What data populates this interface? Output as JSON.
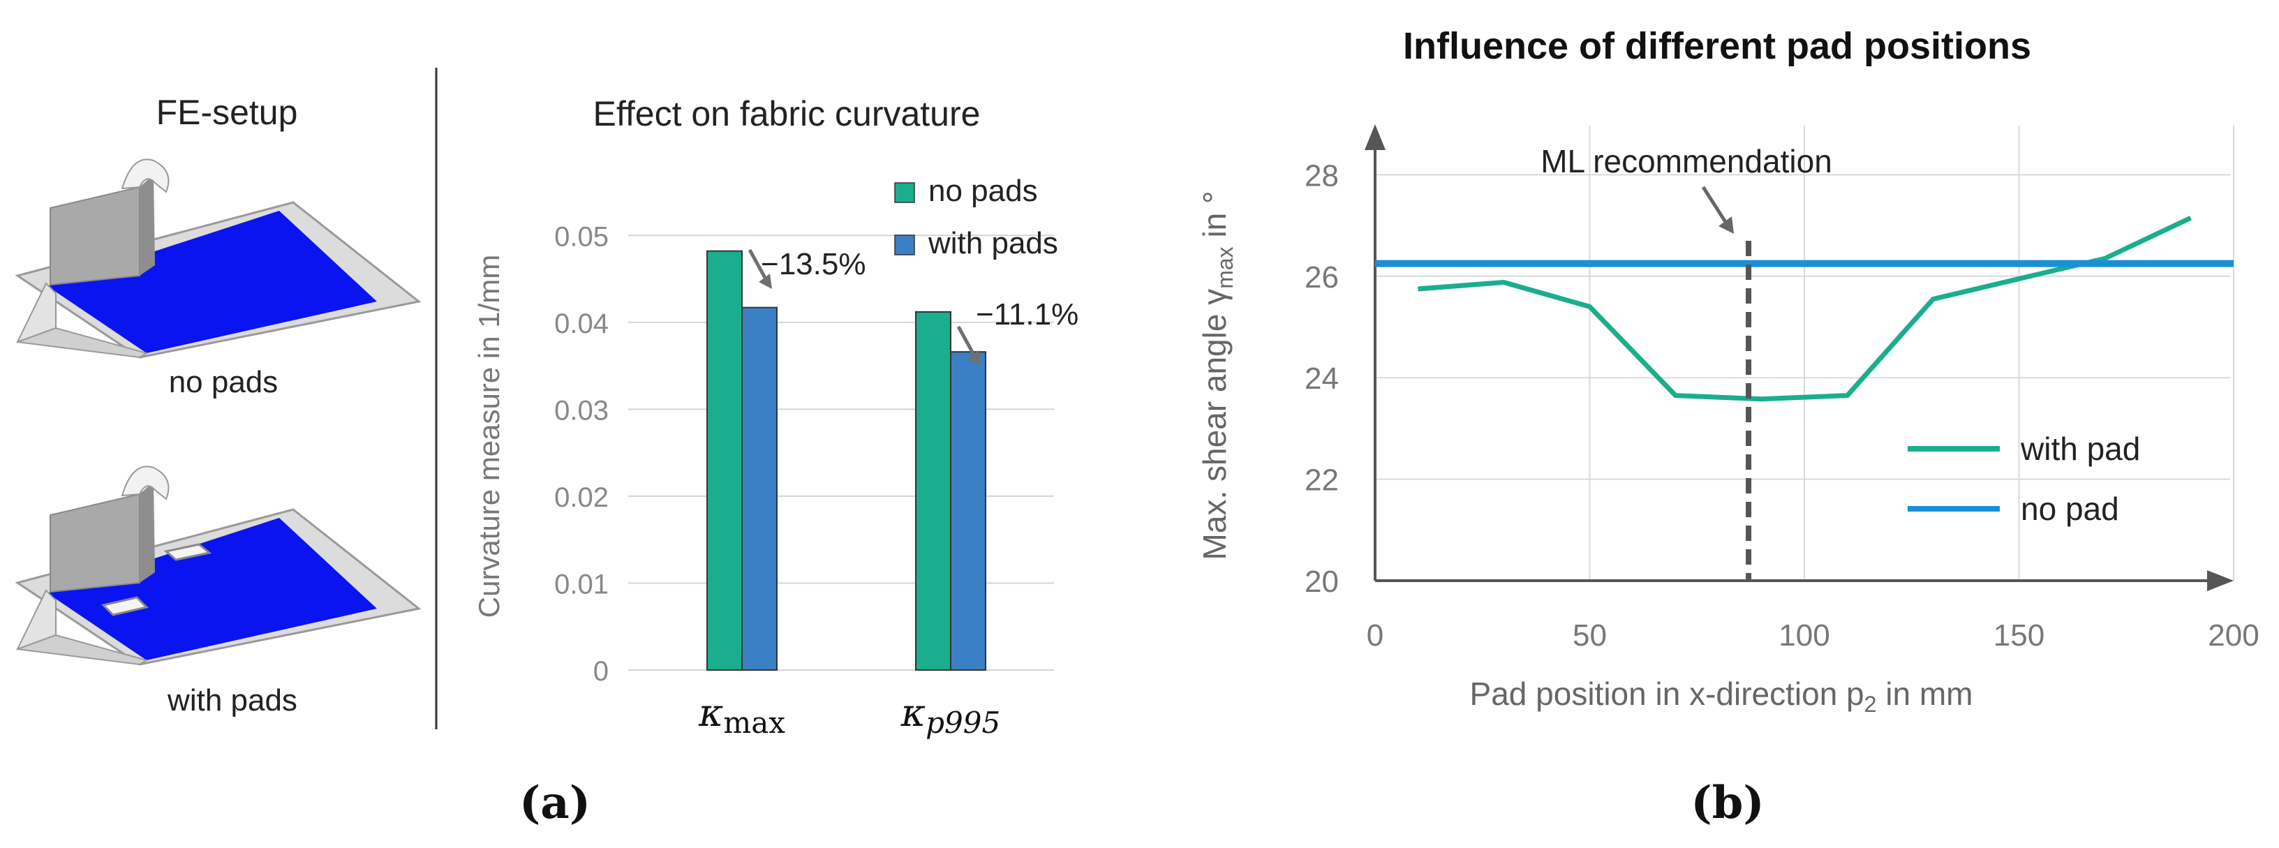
{
  "panel_a": {
    "fe_setup": {
      "title": "FE-setup",
      "label_no_pads": "no pads",
      "label_with_pads": "with pads"
    },
    "caption": "(a)"
  },
  "panel_b": {
    "caption": "(b)"
  },
  "chart_data": [
    {
      "type": "bar",
      "title": "Effect on fabric curvature",
      "ylabel": "Curvature measure in 1/mm",
      "xlabel": "",
      "categories": [
        "κmax",
        "κp995"
      ],
      "series": [
        {
          "name": "no pads",
          "values": [
            0.0482,
            0.0412
          ],
          "color": "#1aae8e"
        },
        {
          "name": "with pads",
          "values": [
            0.0417,
            0.0366
          ],
          "color": "#3b7fc4"
        }
      ],
      "ylim": [
        0,
        0.055
      ],
      "yticks": [
        "0",
        "0.01",
        "0.02",
        "0.03",
        "0.04",
        "0.05"
      ],
      "annotations": [
        "−13.5%",
        "−11.1%"
      ],
      "grid": true,
      "legend": "top-right"
    },
    {
      "type": "line",
      "title": "Influence of different pad positions",
      "xlabel": "Pad position in x-direction p2 in mm",
      "ylabel": "Max. shear angle γmax in °",
      "xlim": [
        0,
        200
      ],
      "ylim": [
        20,
        29
      ],
      "xticks": [
        0,
        50,
        100,
        150,
        200
      ],
      "yticks": [
        20,
        22,
        24,
        26,
        28
      ],
      "series": [
        {
          "name": "with pad",
          "color": "#1aae8e",
          "x": [
            10,
            30,
            50,
            70,
            90,
            110,
            130,
            150,
            170,
            190
          ],
          "y": [
            25.75,
            25.88,
            25.4,
            23.65,
            23.58,
            23.65,
            25.55,
            25.95,
            26.35,
            27.15
          ]
        },
        {
          "name": "no pad",
          "color": "#1a8fd8",
          "x": [
            0,
            200
          ],
          "y": [
            26.25,
            26.25
          ]
        }
      ],
      "vline": {
        "x": 87,
        "label": "ML recommendation"
      },
      "grid": true,
      "legend": "bottom-right"
    }
  ]
}
